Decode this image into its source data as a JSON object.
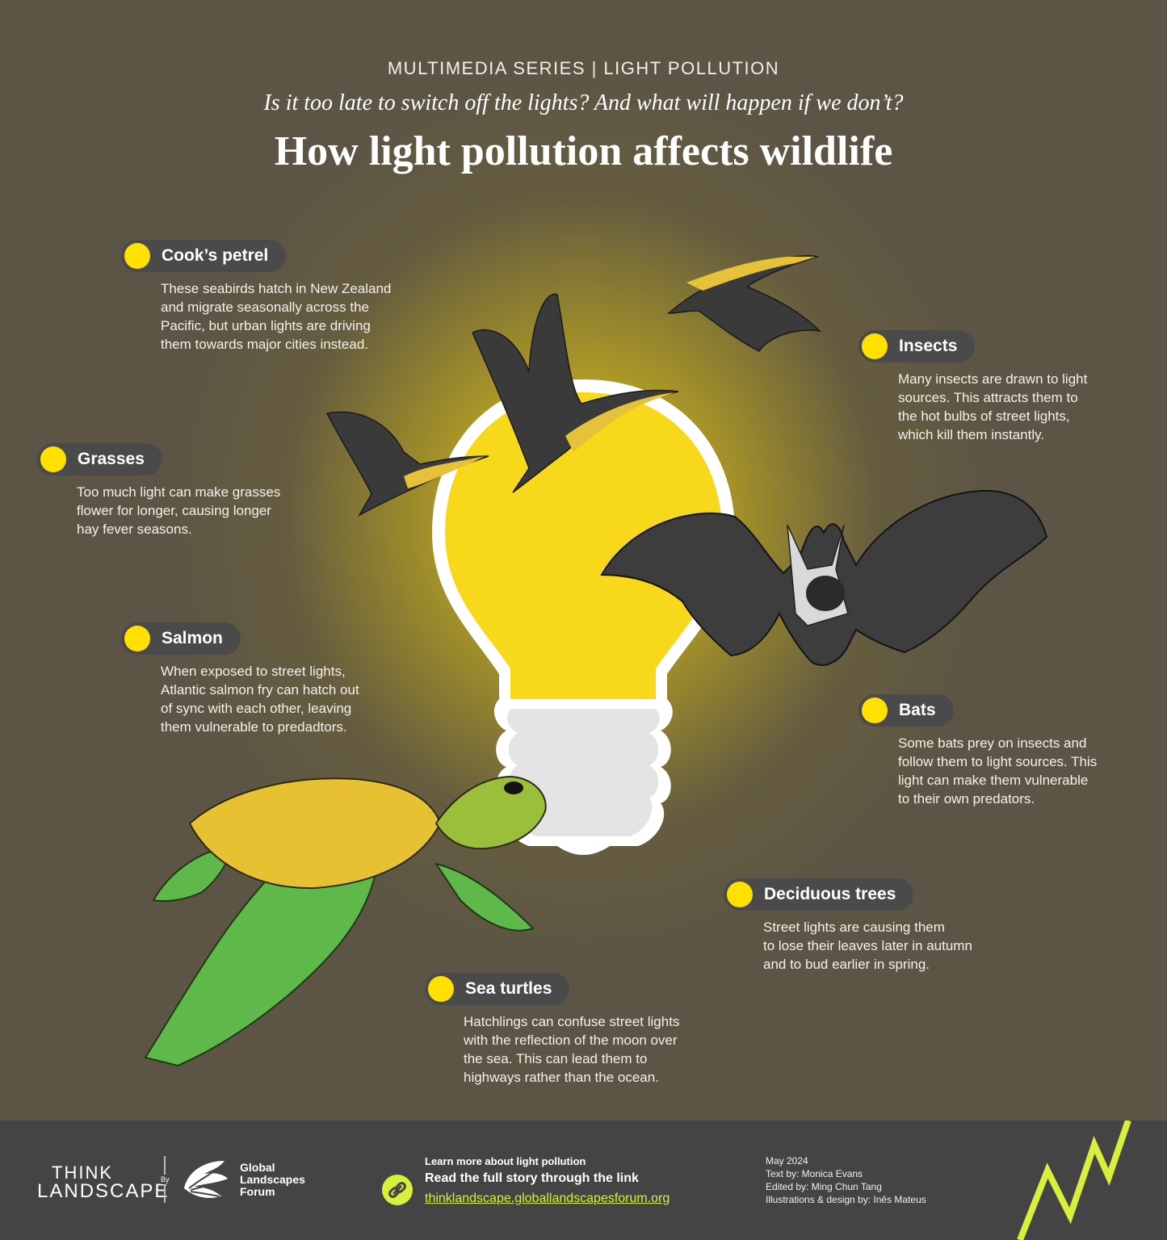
{
  "header": {
    "series": "MULTIMEDIA SERIES | LIGHT POLLUTION",
    "subtitle": "Is it too late to switch off the lights? And what will happen if we don’t?",
    "title": "How light pollution affects wildlife"
  },
  "colors": {
    "accent_yellow": "#ffe000",
    "tag_background": "#4a4a4a",
    "background": "#5c5545",
    "footer_background": "#444444",
    "link_green": "#d8ef3c"
  },
  "species": [
    {
      "id": "cooks-petrel",
      "name": "Cook’s petrel",
      "lines": [
        "These seabirds hatch in New Zealand",
        "and migrate seasonally across the",
        "Pacific, but urban lights are driving",
        "them towards major cities instead."
      ]
    },
    {
      "id": "grasses",
      "name": "Grasses",
      "lines": [
        "Too much light can make grasses",
        "flower for longer, causing longer",
        "hay fever seasons."
      ]
    },
    {
      "id": "salmon",
      "name": "Salmon",
      "lines": [
        "When exposed to street lights,",
        "Atlantic salmon fry can hatch out",
        "of sync with each other, leaving",
        "them vulnerable to predadtors."
      ]
    },
    {
      "id": "insects",
      "name": "Insects",
      "lines": [
        "Many insects are drawn to light",
        "sources. This attracts them to",
        "the hot bulbs of street lights,",
        "which kill them instantly."
      ]
    },
    {
      "id": "bats",
      "name": "Bats",
      "lines": [
        "Some bats prey on insects and",
        "follow them to light sources. This",
        "light can make them vulnerable",
        "to their own predators."
      ]
    },
    {
      "id": "deciduous-trees",
      "name": "Deciduous trees",
      "lines": [
        "Street lights are causing them",
        "to lose their leaves later in autumn",
        "and to bud earlier in spring."
      ]
    },
    {
      "id": "sea-turtles",
      "name": "Sea turtles",
      "lines": [
        "Hatchlings can confuse street lights",
        "with the reflection of the moon over",
        "the sea. This can lead them to",
        "highways rather than the ocean."
      ]
    }
  ],
  "footer": {
    "brand_line1": "THINK",
    "brand_line2": "LANDSCAPE",
    "by": "By",
    "partner": [
      "Global",
      "Landscapes",
      "Forum"
    ],
    "learn_more": "Learn more about light pollution",
    "read_story": "Read the full story through the link",
    "url": "thinklandscape.globallandscapesforum.org",
    "credits": [
      "May 2024",
      "Text by: Monica Evans",
      "Edited by: Ming Chun Tang",
      "Illustrations & design by: Inês Mateus"
    ]
  },
  "icons": {
    "link": "chain-link-icon",
    "brand_mark": "zigzag-mark-icon",
    "partner_logo": "leaf-logo-icon"
  }
}
